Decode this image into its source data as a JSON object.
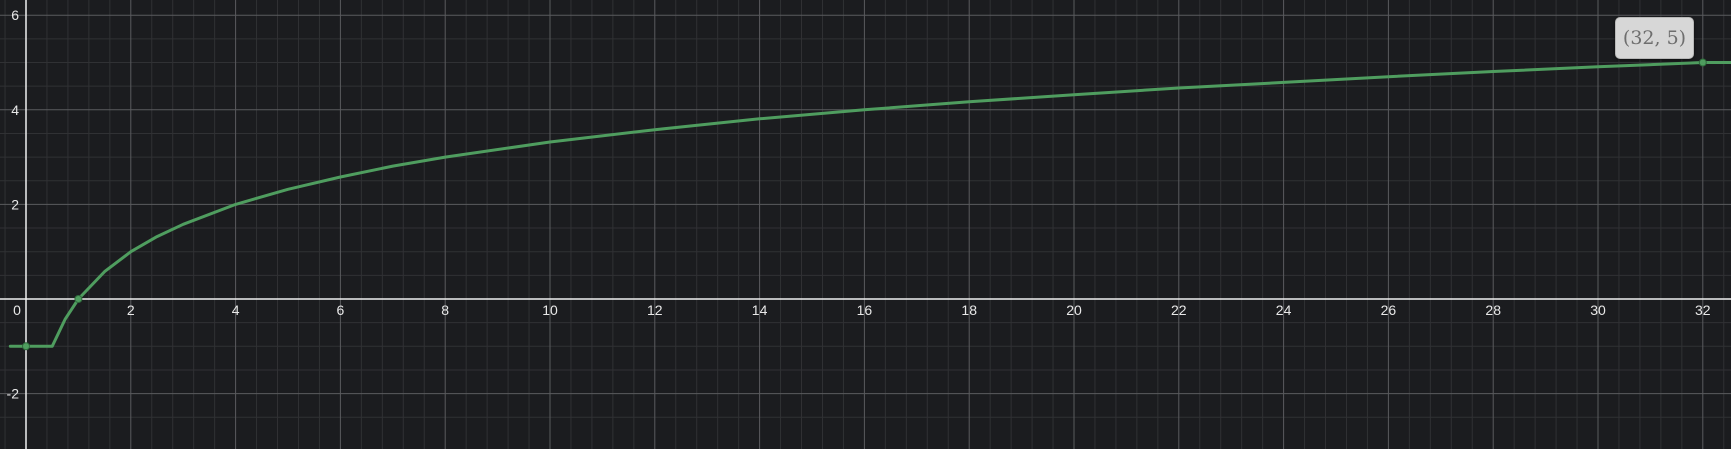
{
  "chart_data": {
    "type": "line",
    "title": "",
    "xlabel": "",
    "ylabel": "",
    "xlim": [
      -0.3,
      32.6
    ],
    "ylim": [
      -2.2,
      6.3
    ],
    "grid": true,
    "x_ticks": [
      0,
      2,
      4,
      6,
      8,
      10,
      12,
      14,
      16,
      18,
      20,
      22,
      24,
      26,
      28,
      30,
      32
    ],
    "y_ticks": [
      -2,
      2,
      4,
      6
    ],
    "series": [
      {
        "color": "#4f9d5f",
        "x": [
          -0.3,
          0.25,
          0.5,
          0.75,
          1,
          1.5,
          2,
          2.5,
          3,
          4,
          5,
          6,
          7,
          8,
          10,
          12,
          14,
          16,
          18,
          20,
          22,
          24,
          26,
          28,
          30,
          32,
          32.6
        ],
        "y": [
          -1,
          -1,
          -1,
          -0.42,
          0,
          0.58,
          1,
          1.32,
          1.58,
          2,
          2.32,
          2.58,
          2.81,
          3,
          3.32,
          3.58,
          3.81,
          4,
          4.17,
          4.32,
          4.46,
          4.58,
          4.7,
          4.81,
          4.91,
          5,
          5
        ]
      }
    ],
    "points": [
      {
        "x": 0,
        "y": -1
      },
      {
        "x": 1,
        "y": 0
      },
      {
        "x": 32,
        "y": 5
      }
    ]
  },
  "tooltip": {
    "text": "(32, 5)"
  },
  "colors": {
    "background": "#1b1c1f",
    "curve": "#4f9d5f",
    "axis": "#f0f0f0",
    "grid_major": "#5a5b5e",
    "grid_minor": "#303134"
  }
}
